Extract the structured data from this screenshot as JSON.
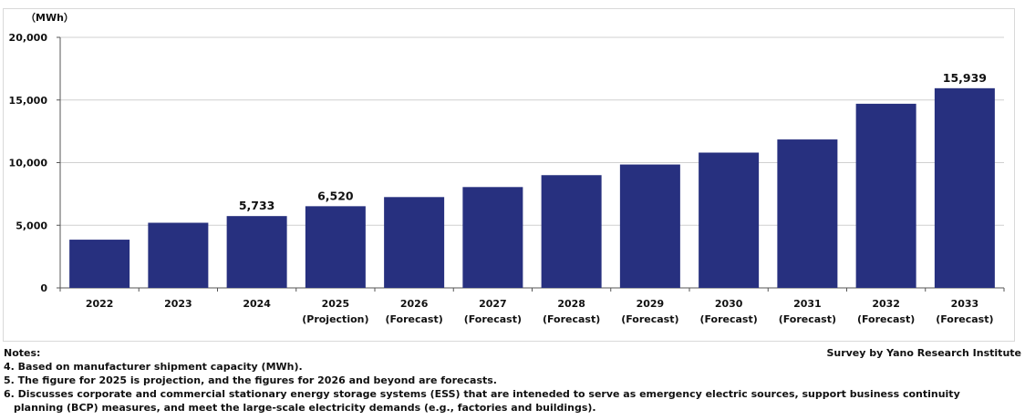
{
  "chart_data": {
    "type": "bar",
    "unit_label": "（MWh）",
    "categories": [
      {
        "year": "2022",
        "sub": ""
      },
      {
        "year": "2023",
        "sub": ""
      },
      {
        "year": "2024",
        "sub": ""
      },
      {
        "year": "2025",
        "sub": "(Projection)"
      },
      {
        "year": "2026",
        "sub": "(Forecast)"
      },
      {
        "year": "2027",
        "sub": "(Forecast)"
      },
      {
        "year": "2028",
        "sub": "(Forecast)"
      },
      {
        "year": "2029",
        "sub": "(Forecast)"
      },
      {
        "year": "2030",
        "sub": "(Forecast)"
      },
      {
        "year": "2031",
        "sub": "(Forecast)"
      },
      {
        "year": "2032",
        "sub": "(Forecast)"
      },
      {
        "year": "2033",
        "sub": "(Forecast)"
      }
    ],
    "values": [
      3850,
      5200,
      5733,
      6520,
      7250,
      8050,
      9000,
      9850,
      10800,
      11850,
      14700,
      15939
    ],
    "data_labels": [
      "",
      "",
      "5,733",
      "6,520",
      "",
      "",
      "",
      "",
      "",
      "",
      "",
      "15,939"
    ],
    "ylim": [
      0,
      20000
    ],
    "yticks": [
      0,
      5000,
      10000,
      15000,
      20000
    ],
    "ytick_labels": [
      "0",
      "5,000",
      "10,000",
      "15,000",
      "20,000"
    ],
    "grid": true,
    "bar_color": "#27307f"
  },
  "notes": {
    "heading": "Notes:",
    "items": [
      "4. Based on manufacturer shipment capacity (MWh).",
      "5. The figure for 2025 is projection, and the figures for 2026 and beyond are forecasts.",
      "6. Discusses corporate and commercial stationary energy storage systems (ESS) that are inteneded  to serve as emergency electric sources, support business continuity",
      "planning (BCP) measures, and meet the large-scale electricity demands (e.g., factories and buildings)."
    ]
  },
  "source": "Survey by Yano Research Institute"
}
